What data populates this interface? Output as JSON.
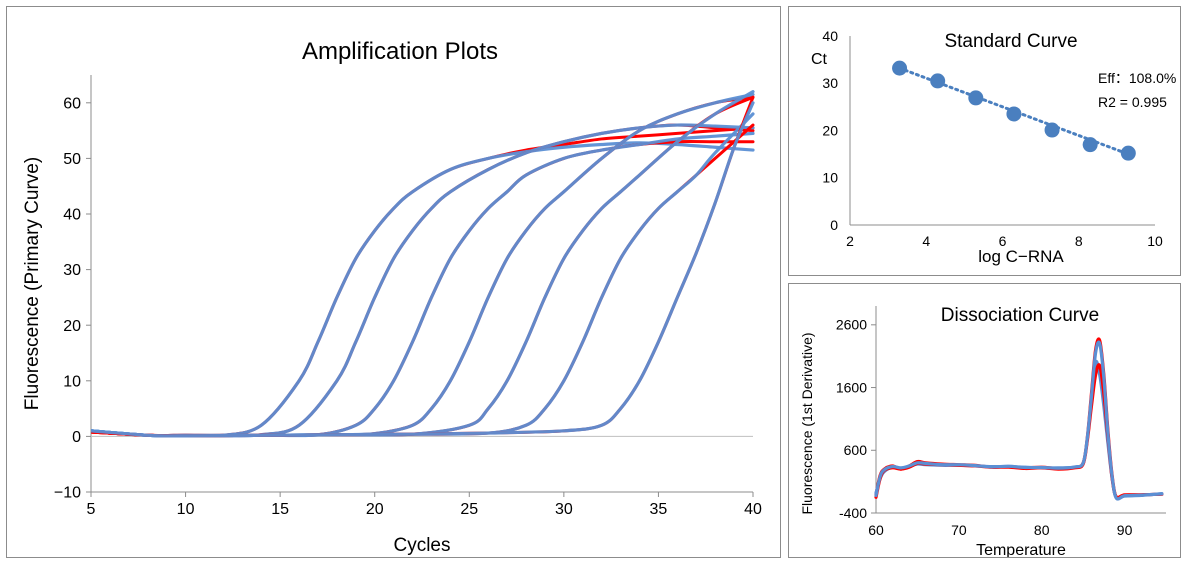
{
  "chart_data": [
    {
      "id": "amplification",
      "type": "line",
      "title": "Amplification Plots",
      "xlabel": "Cycles",
      "ylabel": "Fluorescence (Primary Curve)",
      "xlim": [
        5,
        40
      ],
      "ylim": [
        -10,
        65
      ],
      "xticks": [
        5,
        10,
        15,
        20,
        25,
        30,
        35,
        40
      ],
      "yticks": [
        -10,
        0,
        10,
        20,
        30,
        40,
        50,
        60
      ],
      "xtick_labels": [
        "5",
        "10",
        "15",
        "20",
        "25",
        "30",
        "35",
        "40"
      ],
      "ytick_labels": [
        "−10",
        "0",
        "10",
        "20",
        "30",
        "40",
        "50",
        "60"
      ],
      "grid": "none",
      "colors": {
        "red": "#ff0000",
        "blue": "#5b8fd4"
      },
      "series": [
        {
          "color": "red",
          "ct": 17.6,
          "x": [
            5,
            8,
            10,
            12,
            14,
            16,
            17,
            18,
            19,
            20,
            21,
            22,
            24,
            26,
            28,
            30,
            32,
            34,
            36,
            38,
            40
          ],
          "y": [
            0.8,
            0.2,
            0.2,
            0.2,
            2,
            10,
            17,
            25,
            32,
            37,
            41,
            44,
            48,
            50,
            51.5,
            52.5,
            53.5,
            54,
            54.5,
            55,
            55.5
          ]
        },
        {
          "color": "blue",
          "ct": 17.6,
          "x": [
            5,
            8,
            10,
            12,
            14,
            16,
            17,
            18,
            19,
            20,
            21,
            22,
            24,
            26,
            28,
            30,
            32,
            34,
            36,
            38,
            40
          ],
          "y": [
            1.0,
            0.2,
            0.2,
            0.2,
            2,
            10,
            17,
            25,
            32,
            37,
            41,
            44,
            48,
            50,
            51.2,
            52,
            52.5,
            52.8,
            52.5,
            52,
            51.5
          ]
        },
        {
          "color": "red",
          "ct": 19.8,
          "x": [
            5,
            8,
            10,
            12,
            14,
            16,
            18,
            19,
            20,
            21,
            22,
            23,
            24,
            26,
            28,
            30,
            32,
            34,
            36,
            38,
            40
          ],
          "y": [
            0.8,
            0.2,
            0.2,
            0.2,
            0.3,
            2,
            10,
            17,
            25,
            32,
            37,
            41,
            44,
            48,
            51,
            53,
            54.5,
            55.5,
            56,
            55.5,
            55
          ]
        },
        {
          "color": "blue",
          "ct": 19.8,
          "x": [
            5,
            8,
            10,
            12,
            14,
            16,
            18,
            19,
            20,
            21,
            22,
            23,
            24,
            26,
            28,
            30,
            32,
            34,
            36,
            38,
            40
          ],
          "y": [
            1.0,
            0.2,
            0.2,
            0.2,
            0.3,
            2,
            10,
            17,
            25,
            32,
            37,
            41,
            44,
            48,
            51,
            53,
            54.5,
            55.5,
            56,
            55.8,
            55.5
          ]
        },
        {
          "color": "red",
          "ct": 23.4,
          "x": [
            5,
            8,
            10,
            14,
            17,
            19,
            20,
            21,
            22,
            23,
            24,
            25,
            26,
            27,
            28,
            30,
            32,
            34,
            36,
            38,
            40
          ],
          "y": [
            0.8,
            0.2,
            0.1,
            0.2,
            0.3,
            2,
            5,
            10,
            17,
            25,
            32,
            37,
            41,
            44,
            47,
            50,
            51.5,
            52.5,
            53,
            53,
            53
          ]
        },
        {
          "color": "blue",
          "ct": 23.4,
          "x": [
            5,
            8,
            10,
            14,
            17,
            19,
            20,
            21,
            22,
            23,
            24,
            25,
            26,
            27,
            28,
            30,
            32,
            34,
            36,
            38,
            40
          ],
          "y": [
            1.0,
            0.2,
            0.1,
            0.2,
            0.3,
            2,
            5,
            10,
            17,
            25,
            32,
            37,
            41,
            44,
            47,
            50,
            51.5,
            52.5,
            53.5,
            54,
            54.5
          ]
        },
        {
          "color": "red",
          "ct": 26.6,
          "x": [
            5,
            8,
            10,
            14,
            18,
            20,
            22,
            23,
            24,
            25,
            26,
            27,
            28,
            29,
            30,
            32,
            34,
            36,
            38,
            40
          ],
          "y": [
            0.8,
            0.2,
            0.1,
            0.2,
            0.3,
            0.5,
            2,
            5,
            10,
            17,
            25,
            32,
            37,
            41,
            44,
            50,
            55,
            58,
            60,
            61
          ]
        },
        {
          "color": "blue",
          "ct": 26.6,
          "x": [
            5,
            8,
            10,
            14,
            18,
            20,
            22,
            23,
            24,
            25,
            26,
            27,
            28,
            29,
            30,
            32,
            34,
            36,
            38,
            40
          ],
          "y": [
            1.0,
            0.2,
            0.1,
            0.2,
            0.3,
            0.5,
            2,
            5,
            10,
            17,
            25,
            32,
            37,
            41,
            44,
            50,
            55,
            58,
            60,
            61.5
          ]
        },
        {
          "color": "red",
          "ct": 30.0,
          "x": [
            5,
            8,
            10,
            14,
            18,
            22,
            25,
            26,
            27,
            28,
            29,
            30,
            31,
            32,
            33,
            34,
            36,
            38,
            40
          ],
          "y": [
            0.8,
            0.2,
            0.1,
            0.2,
            0.3,
            0.4,
            2,
            5,
            10,
            17,
            25,
            32,
            37,
            41,
            44,
            47,
            53,
            58,
            61
          ]
        },
        {
          "color": "blue",
          "ct": 30.0,
          "x": [
            5,
            8,
            10,
            14,
            18,
            22,
            25,
            26,
            27,
            28,
            29,
            30,
            31,
            32,
            33,
            34,
            36,
            38,
            40
          ],
          "y": [
            1.0,
            0.2,
            0.1,
            0.2,
            0.3,
            0.4,
            2,
            5,
            10,
            17,
            25,
            32,
            37,
            41,
            44,
            47,
            53,
            58,
            62
          ]
        },
        {
          "color": "red",
          "ct": 33.0,
          "x": [
            5,
            8,
            10,
            14,
            18,
            22,
            26,
            28,
            29,
            30,
            31,
            32,
            33,
            34,
            35,
            36,
            37,
            38,
            40
          ],
          "y": [
            0.8,
            0.2,
            0.1,
            0.2,
            0.3,
            0.4,
            0.6,
            2,
            5,
            10,
            17,
            25,
            32,
            37,
            41,
            44,
            47,
            50,
            56
          ]
        },
        {
          "color": "blue",
          "ct": 33.0,
          "x": [
            5,
            8,
            10,
            14,
            18,
            22,
            26,
            28,
            29,
            30,
            31,
            32,
            33,
            34,
            35,
            36,
            37,
            38,
            40
          ],
          "y": [
            1.0,
            0.2,
            0.1,
            0.2,
            0.3,
            0.4,
            0.6,
            2,
            5,
            10,
            17,
            25,
            32,
            37,
            41,
            44,
            47,
            51,
            58
          ]
        },
        {
          "color": "red",
          "ct": 35.8,
          "x": [
            5,
            8,
            10,
            14,
            18,
            22,
            26,
            30,
            32,
            33,
            34,
            35,
            36,
            37,
            38,
            39,
            40
          ],
          "y": [
            0.8,
            0.2,
            0.1,
            0.2,
            0.3,
            0.4,
            0.6,
            1,
            2,
            5,
            10,
            17,
            25,
            33,
            42,
            52,
            61
          ]
        },
        {
          "color": "blue",
          "ct": 35.8,
          "x": [
            5,
            8,
            10,
            14,
            18,
            22,
            26,
            30,
            32,
            33,
            34,
            35,
            36,
            37,
            38,
            39,
            40
          ],
          "y": [
            1.0,
            0.2,
            0.1,
            0.2,
            0.3,
            0.4,
            0.6,
            1,
            2,
            5,
            10,
            17,
            25,
            33,
            42,
            52,
            60
          ]
        }
      ]
    },
    {
      "id": "standard",
      "type": "scatter",
      "title": "Standard Curve",
      "xlabel": "log C−RNA",
      "ylabel": "Ct",
      "xlim": [
        2,
        10
      ],
      "ylim": [
        0,
        40
      ],
      "xticks": [
        2,
        4,
        6,
        8,
        10
      ],
      "yticks": [
        0,
        10,
        20,
        30,
        40
      ],
      "xtick_labels": [
        "2",
        "4",
        "6",
        "8",
        "10"
      ],
      "ytick_labels": [
        "0",
        "10",
        "20",
        "30",
        "40"
      ],
      "grid": "none",
      "colors": {
        "point": "#4a7fbf"
      },
      "x": [
        3.3,
        4.3,
        5.3,
        6.3,
        7.3,
        8.3,
        9.3
      ],
      "y": [
        33.2,
        30.5,
        26.9,
        23.5,
        20.1,
        17.0,
        15.2
      ],
      "trendline": {
        "style": "dotted",
        "from": [
          3.3,
          33.2
        ],
        "to": [
          9.3,
          15.0
        ]
      },
      "annotations": [
        "Eff：108.0%",
        "R2 = 0.995"
      ]
    },
    {
      "id": "dissociation",
      "type": "line",
      "title": "Dissociation Curve",
      "xlabel": "Temperature",
      "ylabel": "Fluorescence (1st Derivative)",
      "xlim": [
        60,
        95
      ],
      "ylim": [
        -400,
        2900
      ],
      "xticks": [
        60,
        70,
        80,
        90
      ],
      "yticks": [
        -400,
        600,
        1600,
        2600
      ],
      "xtick_labels": [
        "60",
        "70",
        "80",
        "90"
      ],
      "ytick_labels": [
        "-400",
        "600",
        "1600",
        "2600"
      ],
      "grid": "none",
      "colors": {
        "red": "#ff0000",
        "blue": "#5b8fd4"
      },
      "series": [
        {
          "color": "red",
          "x": [
            60,
            60.5,
            61,
            62,
            63,
            64,
            65,
            66,
            68,
            70,
            72,
            74,
            76,
            78,
            80,
            82,
            84,
            85,
            85.5,
            86,
            86.5,
            87,
            87.5,
            88,
            88.5,
            89,
            90,
            92,
            94.5
          ],
          "y": [
            -100,
            200,
            300,
            350,
            300,
            350,
            420,
            400,
            380,
            370,
            360,
            330,
            340,
            320,
            330,
            310,
            330,
            400,
            800,
            1500,
            2200,
            2350,
            1800,
            900,
            200,
            -150,
            -120,
            -110,
            -100
          ]
        },
        {
          "color": "blue",
          "x": [
            60,
            60.5,
            61,
            62,
            63,
            64,
            65,
            66,
            68,
            70,
            72,
            74,
            76,
            78,
            80,
            82,
            84,
            85,
            85.5,
            86,
            86.5,
            87,
            87.5,
            88,
            88.5,
            89,
            90,
            92,
            94.5
          ],
          "y": [
            -80,
            150,
            260,
            330,
            310,
            340,
            380,
            370,
            360,
            360,
            350,
            340,
            340,
            330,
            320,
            320,
            330,
            390,
            780,
            1400,
            2000,
            1800,
            1300,
            700,
            150,
            -160,
            -130,
            -120,
            -90
          ]
        },
        {
          "color": "red",
          "x": [
            60,
            60.5,
            61,
            62,
            63,
            64,
            65,
            66,
            68,
            70,
            72,
            74,
            76,
            78,
            80,
            82,
            84,
            85,
            85.5,
            86,
            86.5,
            87,
            87.5,
            88,
            88.5,
            89,
            90,
            92,
            94.5
          ],
          "y": [
            -150,
            150,
            280,
            320,
            300,
            330,
            390,
            380,
            370,
            360,
            350,
            330,
            330,
            310,
            320,
            300,
            320,
            380,
            750,
            1300,
            1800,
            1950,
            1500,
            800,
            150,
            -140,
            -110,
            -110,
            -100
          ]
        },
        {
          "color": "blue",
          "x": [
            60,
            60.5,
            61,
            62,
            63,
            64,
            65,
            66,
            68,
            70,
            72,
            74,
            76,
            78,
            80,
            82,
            84,
            85,
            85.5,
            86,
            86.5,
            87,
            87.5,
            88,
            88.5,
            89,
            90,
            92,
            94.5
          ],
          "y": [
            -120,
            180,
            290,
            340,
            320,
            350,
            400,
            390,
            370,
            370,
            355,
            335,
            345,
            325,
            325,
            315,
            335,
            395,
            790,
            1450,
            2150,
            2300,
            1750,
            850,
            180,
            -160,
            -125,
            -115,
            -95
          ]
        }
      ]
    }
  ]
}
